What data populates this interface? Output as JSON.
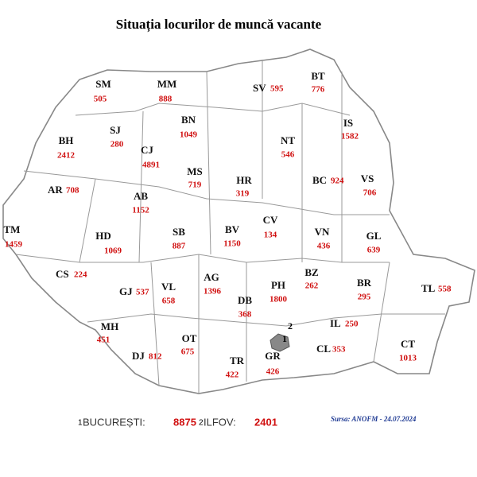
{
  "title": "Situația locurilor de muncă vacante",
  "counties": [
    {
      "code": "SM",
      "value": 505
    },
    {
      "code": "MM",
      "value": 888
    },
    {
      "code": "SV",
      "value": 595
    },
    {
      "code": "BT",
      "value": 776
    },
    {
      "code": "BH",
      "value": 2412
    },
    {
      "code": "SJ",
      "value": 280
    },
    {
      "code": "BN",
      "value": 1049
    },
    {
      "code": "IS",
      "value": 1582
    },
    {
      "code": "CJ",
      "value": 4891
    },
    {
      "code": "NT",
      "value": 546
    },
    {
      "code": "MS",
      "value": 719
    },
    {
      "code": "AR",
      "value": 708
    },
    {
      "code": "HR",
      "value": 319
    },
    {
      "code": "BC",
      "value": 924
    },
    {
      "code": "VS",
      "value": 706
    },
    {
      "code": "AB",
      "value": 1152
    },
    {
      "code": "CV",
      "value": 134
    },
    {
      "code": "TM",
      "value": 1459
    },
    {
      "code": "BV",
      "value": 1150
    },
    {
      "code": "SB",
      "value": 887
    },
    {
      "code": "HD",
      "value": 1069
    },
    {
      "code": "VN",
      "value": 436
    },
    {
      "code": "GL",
      "value": 639
    },
    {
      "code": "CS",
      "value": 224
    },
    {
      "code": "AG",
      "value": 1396
    },
    {
      "code": "BZ",
      "value": 262
    },
    {
      "code": "PH",
      "value": 1800
    },
    {
      "code": "GJ",
      "value": 537
    },
    {
      "code": "VL",
      "value": 658
    },
    {
      "code": "BR",
      "value": 295
    },
    {
      "code": "TL",
      "value": 558
    },
    {
      "code": "DB",
      "value": 368
    },
    {
      "code": "MH",
      "value": 451
    },
    {
      "code": "IL",
      "value": 250
    },
    {
      "code": "OT",
      "value": 675
    },
    {
      "code": "CL",
      "value": 353
    },
    {
      "code": "CT",
      "value": 1013
    },
    {
      "code": "DJ",
      "value": 812
    },
    {
      "code": "GR",
      "value": 426
    },
    {
      "code": "TR",
      "value": 422
    }
  ],
  "footer": {
    "items": [
      {
        "marker": "1",
        "label": "BUCUREȘTI:",
        "value": 8875
      },
      {
        "marker": "2",
        "label": "ILFOV:",
        "value": 2401
      }
    ],
    "source": "Sursa: ANOFM - 24.07.2024"
  }
}
